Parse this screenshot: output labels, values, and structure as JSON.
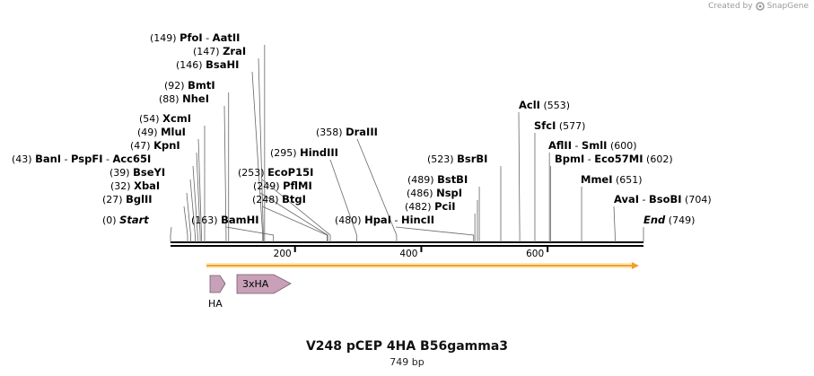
{
  "watermark": {
    "prefix": "Created by",
    "brand": "SnapGene"
  },
  "title": "V248 pCEP 4HA B56gamma3",
  "subtitle": "749 bp",
  "sequence": {
    "length": 749,
    "ticks": [
      200,
      400,
      600
    ]
  },
  "sites": [
    {
      "names": [
        "PfoI",
        "AatII"
      ],
      "pos": "(149)",
      "bp": 149,
      "side": "pos-first"
    },
    {
      "names": [
        "ZraI"
      ],
      "pos": "(147)",
      "bp": 147,
      "side": "pos-first"
    },
    {
      "names": [
        "BsaHI"
      ],
      "pos": "(146)",
      "bp": 146,
      "side": "pos-first"
    },
    {
      "names": [
        "BmtI"
      ],
      "pos": "(92)",
      "bp": 92,
      "side": "pos-first"
    },
    {
      "names": [
        "NheI"
      ],
      "pos": "(88)",
      "bp": 88,
      "side": "pos-first"
    },
    {
      "names": [
        "XcmI"
      ],
      "pos": "(54)",
      "bp": 54,
      "side": "pos-first"
    },
    {
      "names": [
        "MluI"
      ],
      "pos": "(49)",
      "bp": 49,
      "side": "pos-first"
    },
    {
      "names": [
        "KpnI"
      ],
      "pos": "(47)",
      "bp": 47,
      "side": "pos-first"
    },
    {
      "names": [
        "BanI",
        "PspFI",
        "Acc65I"
      ],
      "pos": "(43)",
      "bp": 43,
      "side": "pos-first"
    },
    {
      "names": [
        "BseYI"
      ],
      "pos": "(39)",
      "bp": 39,
      "side": "pos-first"
    },
    {
      "names": [
        "XbaI"
      ],
      "pos": "(32)",
      "bp": 32,
      "side": "pos-first"
    },
    {
      "names": [
        "BglII"
      ],
      "pos": "(27)",
      "bp": 27,
      "side": "pos-first"
    },
    {
      "names": [
        "Start"
      ],
      "pos": "(0)",
      "bp": 0,
      "side": "pos-first",
      "italic": true
    },
    {
      "names": [
        "BamHI"
      ],
      "pos": "(163)",
      "bp": 163,
      "side": "pos-first"
    },
    {
      "names": [
        "DraIII"
      ],
      "pos": "(358)",
      "bp": 358,
      "side": "pos-first"
    },
    {
      "names": [
        "HindIII"
      ],
      "pos": "(295)",
      "bp": 295,
      "side": "pos-first"
    },
    {
      "names": [
        "EcoP15I"
      ],
      "pos": "(253)",
      "bp": 253,
      "side": "pos-first"
    },
    {
      "names": [
        "PflMI"
      ],
      "pos": "(249)",
      "bp": 249,
      "side": "pos-first"
    },
    {
      "names": [
        "BtgI"
      ],
      "pos": "(248)",
      "bp": 248,
      "side": "pos-first"
    },
    {
      "names": [
        "HpaI",
        "HincII"
      ],
      "pos": "(480)",
      "bp": 480,
      "side": "pos-first"
    },
    {
      "names": [
        "BsrBI"
      ],
      "pos": "(523)",
      "bp": 523,
      "side": "pos-first"
    },
    {
      "names": [
        "BstBI"
      ],
      "pos": "(489)",
      "bp": 489,
      "side": "pos-first"
    },
    {
      "names": [
        "NspI"
      ],
      "pos": "(486)",
      "bp": 486,
      "side": "pos-first"
    },
    {
      "names": [
        "PciI"
      ],
      "pos": "(482)",
      "bp": 482,
      "side": "pos-first"
    },
    {
      "names": [
        "AclI"
      ],
      "pos": "(553)",
      "bp": 553,
      "side": "name-first"
    },
    {
      "names": [
        "SfcI"
      ],
      "pos": "(577)",
      "bp": 577,
      "side": "name-first"
    },
    {
      "names": [
        "AflII",
        "SmlI"
      ],
      "pos": "(600)",
      "bp": 600,
      "side": "name-first"
    },
    {
      "names": [
        "BpmI",
        "Eco57MI"
      ],
      "pos": "(602)",
      "bp": 602,
      "side": "name-first"
    },
    {
      "names": [
        "MmeI"
      ],
      "pos": "(651)",
      "bp": 651,
      "side": "name-first"
    },
    {
      "names": [
        "AvaI",
        "BsoBI"
      ],
      "pos": "(704)",
      "bp": 704,
      "side": "name-first"
    },
    {
      "names": [
        "End"
      ],
      "pos": "(749)",
      "bp": 749,
      "side": "name-first",
      "italic": true
    }
  ],
  "features": [
    {
      "name": "HA",
      "type": "arrow",
      "color": "#c8a0b8"
    },
    {
      "name": "3xHA",
      "type": "arrow",
      "color": "#c8a0b8"
    }
  ],
  "colors": {
    "orf": "#f0a030",
    "feature": "#c8a0b8",
    "backbone": "#000000"
  }
}
